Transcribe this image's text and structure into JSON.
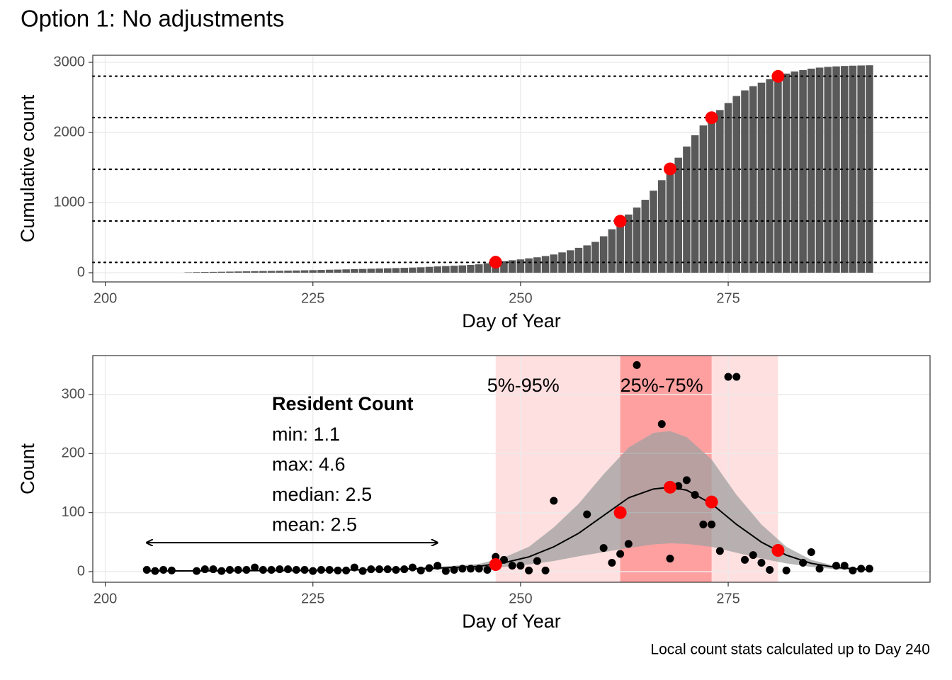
{
  "title": "Option 1: No adjustments",
  "caption": "Local count stats calculated up to Day 240",
  "chart_data": [
    {
      "type": "bar",
      "ylabel": "Cumulative count",
      "xlabel": "Day of Year",
      "color": "#595959",
      "xlim": [
        198.5,
        299.3
      ],
      "xticks": [
        200,
        225,
        250,
        275
      ],
      "ylim": [
        -131,
        3101
      ],
      "yticks": [
        0,
        1000,
        2000,
        3000
      ],
      "grid": true,
      "x": [
        210,
        211,
        212,
        213,
        214,
        215,
        216,
        217,
        218,
        219,
        220,
        221,
        222,
        223,
        224,
        225,
        226,
        227,
        228,
        229,
        230,
        231,
        232,
        233,
        234,
        235,
        236,
        237,
        238,
        239,
        240,
        241,
        242,
        243,
        244,
        245,
        246,
        247,
        248,
        249,
        250,
        251,
        252,
        253,
        254,
        255,
        256,
        257,
        258,
        259,
        260,
        261,
        262,
        263,
        264,
        265,
        266,
        267,
        268,
        269,
        270,
        271,
        272,
        273,
        274,
        275,
        276,
        277,
        278,
        279,
        280,
        281,
        282,
        283,
        284,
        285,
        286,
        287,
        288,
        289,
        290,
        291,
        292
      ],
      "values": [
        5,
        8,
        10,
        12,
        14,
        16,
        18,
        20,
        22,
        24,
        26,
        28,
        30,
        32,
        35,
        37,
        40,
        43,
        45,
        48,
        51,
        54,
        57,
        60,
        63,
        66,
        70,
        74,
        78,
        84,
        90,
        95,
        100,
        105,
        112,
        120,
        135,
        150,
        165,
        178,
        190,
        205,
        220,
        238,
        260,
        290,
        320,
        355,
        390,
        440,
        520,
        620,
        735,
        830,
        930,
        1040,
        1170,
        1320,
        1480,
        1640,
        1800,
        1960,
        2100,
        2210,
        2320,
        2420,
        2520,
        2600,
        2660,
        2710,
        2760,
        2800,
        2840,
        2870,
        2890,
        2910,
        2925,
        2935,
        2942,
        2948,
        2952,
        2955,
        2958
      ],
      "hlines": [
        147.5,
        737.5,
        1475,
        2212.5,
        2802.5
      ],
      "points": {
        "color": "#ff0000",
        "x": [
          247,
          262,
          268,
          273,
          281
        ],
        "values": [
          150,
          735,
          1480,
          2210,
          2800
        ]
      }
    },
    {
      "type": "scatter",
      "ylabel": "Count",
      "xlabel": "Day of Year",
      "color": "#000000",
      "xlim": [
        198.5,
        299.3
      ],
      "xticks": [
        200,
        225,
        250,
        275
      ],
      "ylim": [
        -18,
        366
      ],
      "yticks": [
        0,
        100,
        200,
        300
      ],
      "grid": true,
      "bands": [
        {
          "label": "5%-95%",
          "range": [
            247,
            281
          ],
          "color": "#ffe0e0"
        },
        {
          "label": "25%-75%",
          "range": [
            262,
            273
          ],
          "color": "#ffa0a0"
        }
      ],
      "x": [
        205,
        206,
        207,
        208,
        211,
        212,
        213,
        214,
        215,
        216,
        217,
        218,
        219,
        220,
        221,
        222,
        223,
        224,
        225,
        226,
        227,
        228,
        229,
        230,
        231,
        232,
        233,
        234,
        235,
        236,
        237,
        238,
        239,
        240,
        241,
        242,
        243,
        244,
        245,
        246,
        247,
        248,
        249,
        250,
        251,
        252,
        253,
        254,
        258,
        260,
        261,
        262,
        263,
        264,
        267,
        268,
        269,
        270,
        271,
        272,
        273,
        274,
        275,
        276,
        277,
        278,
        279,
        280,
        282,
        284,
        285,
        286,
        288,
        289,
        290,
        291,
        292
      ],
      "values": [
        3,
        1,
        3,
        2,
        1,
        4,
        4,
        1,
        3,
        3,
        3,
        7,
        3,
        3,
        4,
        4,
        3,
        3,
        1,
        3,
        3,
        2,
        2,
        7,
        1,
        4,
        4,
        4,
        3,
        4,
        7,
        2,
        6,
        10,
        1,
        3,
        5,
        5,
        5,
        3,
        25,
        20,
        10,
        10,
        2,
        18,
        2,
        120,
        97,
        40,
        15,
        30,
        47,
        350,
        250,
        22,
        145,
        155,
        130,
        80,
        80,
        35,
        330,
        330,
        20,
        28,
        15,
        3,
        2,
        15,
        33,
        5,
        10,
        10,
        2,
        5,
        5
      ],
      "fit": {
        "color": "#000000",
        "ribbon_color": "#a0a0a0",
        "x": [
          205,
          215,
          225,
          235,
          240,
          245,
          248,
          251,
          254,
          257,
          260,
          263,
          266,
          268,
          270,
          273,
          276,
          279,
          282,
          285,
          288,
          292
        ],
        "values": [
          1,
          1.5,
          2,
          4,
          6,
          9,
          15,
          25,
          42,
          65,
          95,
          125,
          140,
          143,
          138,
          115,
          80,
          50,
          28,
          14,
          7,
          3
        ],
        "upper": [
          1,
          2,
          3,
          5,
          8,
          13,
          24,
          42,
          75,
          115,
          165,
          210,
          235,
          238,
          228,
          190,
          130,
          80,
          42,
          20,
          9,
          4
        ],
        "lower": [
          1,
          1,
          1,
          2,
          3,
          5,
          8,
          12,
          18,
          26,
          33,
          40,
          46,
          48,
          47,
          42,
          32,
          22,
          14,
          8,
          4,
          2
        ]
      },
      "points": {
        "color": "#ff0000",
        "x": [
          247,
          262,
          268,
          273,
          281
        ],
        "values": [
          12,
          100,
          143,
          118,
          36
        ]
      },
      "arrow": {
        "x": [
          205,
          240
        ],
        "y": 49
      },
      "annotation": {
        "title": "Resident Count",
        "lines": [
          "min: 1.1",
          "max: 4.6",
          "median: 2.5",
          "mean: 2.5"
        ]
      }
    }
  ]
}
